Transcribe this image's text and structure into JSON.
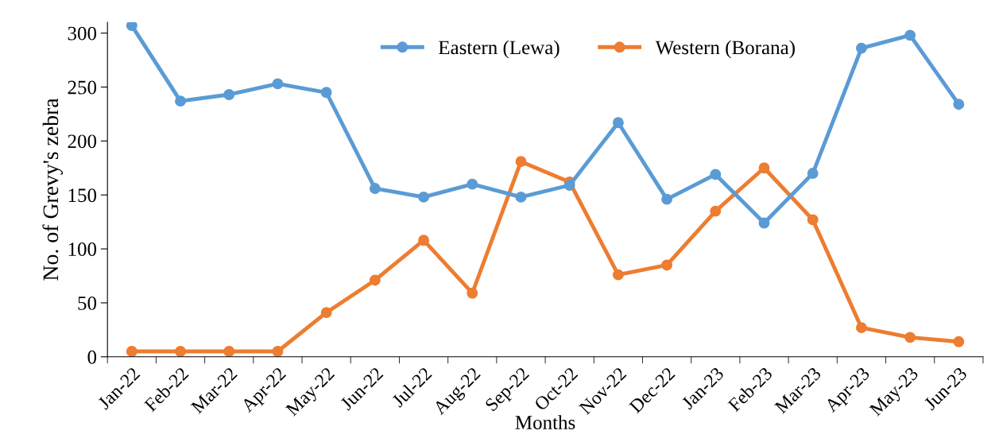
{
  "chart_data": {
    "type": "line",
    "xlabel": "Months",
    "ylabel": "No. of Grevy's zebra",
    "categories": [
      "Jan-22",
      "Feb-22",
      "Mar-22",
      "Apr-22",
      "May-22",
      "Jun-22",
      "Jul-22",
      "Aug-22",
      "Sep-22",
      "Oct-22",
      "Nov-22",
      "Dec-22",
      "Jan-23",
      "Feb-23",
      "Mar-23",
      "Apr-23",
      "May-23",
      "Jun-23"
    ],
    "series": [
      {
        "name": "Eastern (Lewa)",
        "color": "#5b9bd5",
        "values": [
          307,
          237,
          243,
          253,
          245,
          156,
          148,
          160,
          148,
          159,
          217,
          146,
          169,
          124,
          170,
          286,
          298,
          234
        ]
      },
      {
        "name": "Western (Borana)",
        "color": "#ed7d31",
        "values": [
          5,
          5,
          5,
          5,
          41,
          71,
          108,
          59,
          181,
          162,
          76,
          85,
          135,
          175,
          127,
          27,
          18,
          14
        ]
      }
    ],
    "ylim": [
      0,
      310
    ],
    "yticks": [
      0,
      50,
      100,
      150,
      200,
      250,
      300
    ],
    "grid": false,
    "legend": "top",
    "marker": "circle",
    "line_style": "solid"
  }
}
